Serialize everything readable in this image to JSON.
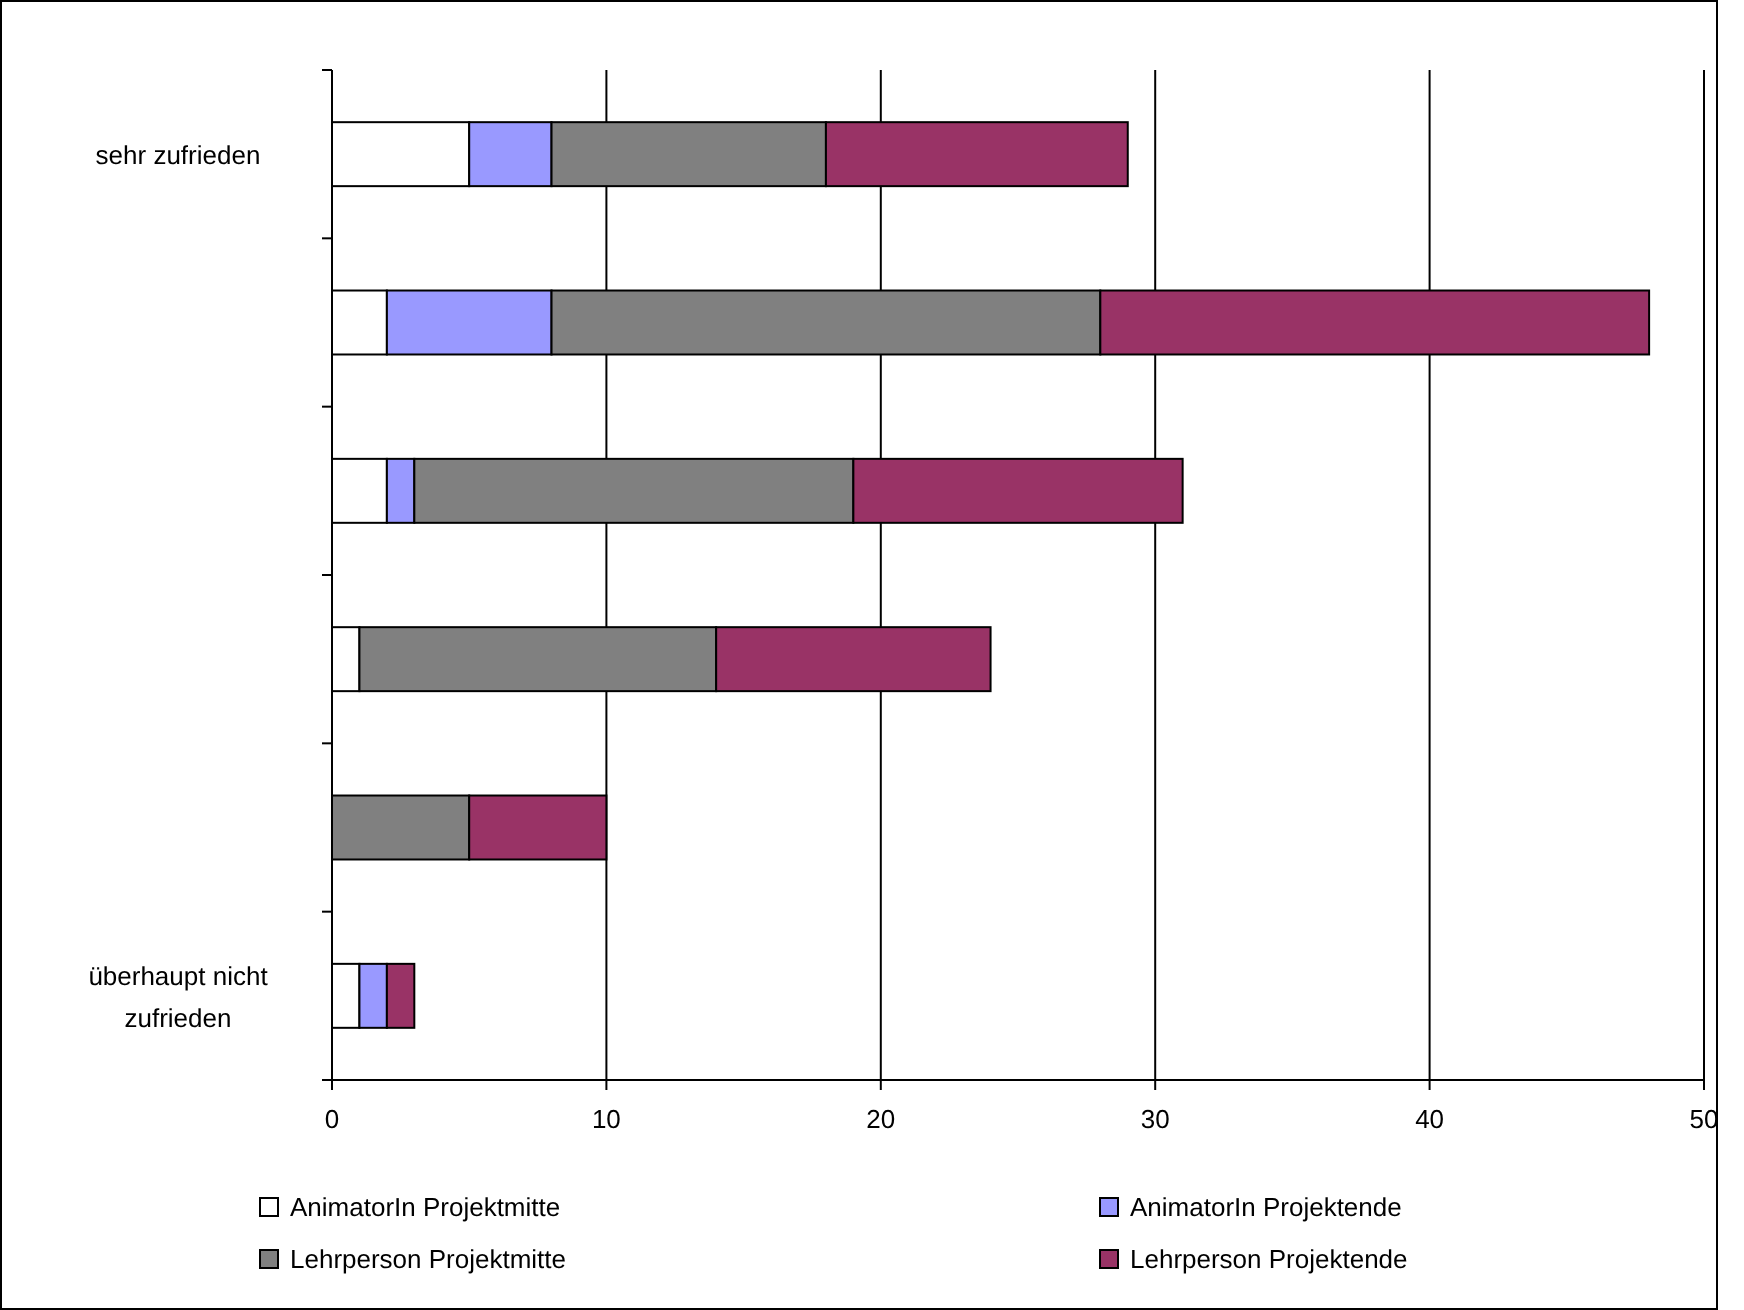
{
  "chart_data": {
    "type": "bar",
    "orientation": "horizontal",
    "stacked": true,
    "categories": [
      "sehr zufrieden",
      null,
      null,
      null,
      null,
      "überhaupt nicht zufrieden"
    ],
    "series": [
      {
        "name": "AnimatorIn Projektmitte",
        "color": "#ffffff",
        "values": [
          5,
          2,
          2,
          1,
          0,
          1
        ]
      },
      {
        "name": "AnimatorIn Projektende",
        "color": "#9999ff",
        "values": [
          3,
          6,
          1,
          0,
          0,
          1
        ]
      },
      {
        "name": "Lehrperson Projektmitte",
        "color": "#808080",
        "values": [
          10,
          20,
          16,
          13,
          5,
          0
        ]
      },
      {
        "name": "Lehrperson Projektende",
        "color": "#993366",
        "values": [
          11,
          20,
          12,
          10,
          5,
          1
        ]
      }
    ],
    "xlim": [
      0,
      50
    ],
    "xticks": [
      0,
      10,
      20,
      30,
      40,
      50
    ],
    "grid": "x",
    "legend": "bottom"
  }
}
